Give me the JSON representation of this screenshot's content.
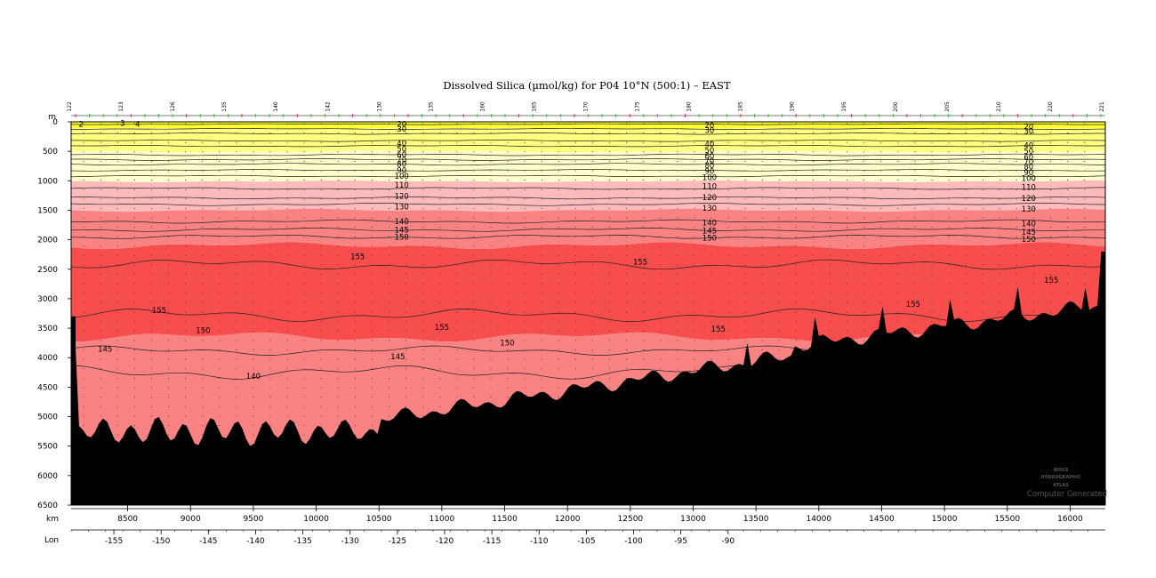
{
  "chart_data": {
    "type": "contour",
    "title": "Dissolved Silica (µmol/kg) for P04 10°N (500:1) – EAST",
    "y_unit": "m",
    "x_unit": "km",
    "lon_label": "Lon",
    "xlim": [
      8050,
      16280
    ],
    "ylim": [
      0,
      6500
    ],
    "y_ticks": [
      0,
      500,
      1000,
      1500,
      2000,
      2500,
      3000,
      3500,
      4000,
      4500,
      5000,
      5500,
      6000,
      6500
    ],
    "x_ticks": [
      8500,
      9000,
      9500,
      10000,
      10500,
      11000,
      11500,
      12000,
      12500,
      13000,
      13500,
      14000,
      14500,
      15000,
      15500,
      16000
    ],
    "lon_ticks": [
      -155,
      -150,
      -145,
      -140,
      -135,
      -130,
      -125,
      -120,
      -115,
      -110,
      -105,
      -100,
      -95,
      -90
    ],
    "station_numbers": [
      "122",
      "123",
      "126",
      "135",
      "140",
      "142",
      "130",
      "135",
      "160",
      "165",
      "170",
      "175",
      "180",
      "185",
      "190",
      "195",
      "200",
      "205",
      "210",
      "220",
      "221"
    ],
    "contour_levels_top": [
      "2",
      "3",
      "4"
    ],
    "contour_labels": {
      "upper_west": [
        "20",
        "30",
        "40",
        "50",
        "60",
        "70",
        "80",
        "90",
        "100",
        "110",
        "120",
        "130",
        "140",
        "145",
        "150"
      ],
      "upper_mid": [
        "20",
        "30",
        "40",
        "50",
        "60",
        "70",
        "80",
        "90",
        "100",
        "110",
        "120",
        "130",
        "140",
        "145",
        "150"
      ],
      "upper_east": [
        "20",
        "30",
        "40",
        "50",
        "60",
        "70",
        "80",
        "90",
        "100",
        "110",
        "120",
        "130",
        "140",
        "145",
        "150"
      ],
      "deep": [
        "155",
        "155",
        "155",
        "155",
        "155",
        "155",
        "150",
        "150",
        "145",
        "145",
        "140"
      ]
    },
    "fill_bands": [
      {
        "from": 0,
        "to": 10,
        "color": "#ffff33"
      },
      {
        "from": 10,
        "to": 40,
        "color": "#ffff80"
      },
      {
        "from": 40,
        "to": 100,
        "color": "#ffffcc"
      },
      {
        "from": 100,
        "to": 130,
        "color": "#ffbbbb"
      },
      {
        "from": 130,
        "to": 150,
        "color": "#f98383"
      },
      {
        "from": 150,
        "to": 155,
        "color": "#f84d4d"
      },
      {
        "from": 155,
        "to": 160,
        "color": "#f84d4d"
      }
    ],
    "watermark": {
      "line1": "WOCE",
      "line2": "HYDROGRAPHIC",
      "line3": "ATLAS",
      "generated": "Computer Generated"
    }
  }
}
